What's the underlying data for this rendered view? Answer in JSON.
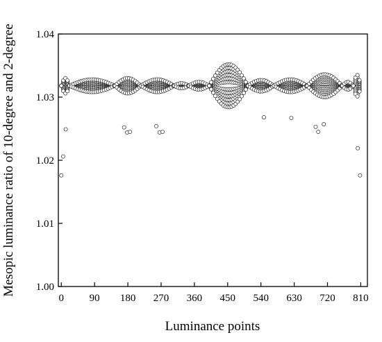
{
  "chart_data": {
    "type": "scatter",
    "title": "",
    "xlabel": "Luminance points",
    "ylabel": "Mesopic luminance ratio of 10-degree and 2-degree",
    "xlim": [
      -8,
      828
    ],
    "ylim": [
      1.0,
      1.04
    ],
    "x_ticks": [
      0,
      90,
      180,
      270,
      360,
      450,
      540,
      630,
      720,
      810
    ],
    "y_ticks": [
      1.0,
      1.01,
      1.02,
      1.03,
      1.04
    ],
    "y_tick_labels": [
      "1.00",
      "1.01",
      "1.02",
      "1.03",
      "1.04"
    ],
    "marker": "open-circle",
    "grid": false,
    "legend": "none",
    "x_range": [
      0,
      810
    ],
    "baseline": 1.0318,
    "lobes": [
      {
        "x_start": 0,
        "x_end": 22,
        "amplitude": 0.0012
      },
      {
        "x_start": 22,
        "x_end": 145,
        "amplitude": 0.001
      },
      {
        "x_start": 145,
        "x_end": 215,
        "amplitude": 0.0012
      },
      {
        "x_start": 215,
        "x_end": 305,
        "amplitude": 0.001
      },
      {
        "x_start": 305,
        "x_end": 345,
        "amplitude": 0.0004
      },
      {
        "x_start": 345,
        "x_end": 400,
        "amplitude": 0.0006
      },
      {
        "x_start": 400,
        "x_end": 505,
        "amplitude": 0.0034
      },
      {
        "x_start": 505,
        "x_end": 575,
        "amplitude": 0.0009
      },
      {
        "x_start": 575,
        "x_end": 665,
        "amplitude": 0.001
      },
      {
        "x_start": 665,
        "x_end": 760,
        "amplitude": 0.0018
      },
      {
        "x_start": 760,
        "x_end": 790,
        "amplitude": 0.0006
      },
      {
        "x_start": 790,
        "x_end": 810,
        "amplitude": 0.0017
      }
    ],
    "lower_extremes": [
      {
        "x": 0,
        "y": 1.0176
      },
      {
        "x": 5,
        "y": 1.0206
      },
      {
        "x": 12,
        "y": 1.0249
      },
      {
        "x": 170,
        "y": 1.0252
      },
      {
        "x": 178,
        "y": 1.0244
      },
      {
        "x": 186,
        "y": 1.0245
      },
      {
        "x": 257,
        "y": 1.0254
      },
      {
        "x": 266,
        "y": 1.0244
      },
      {
        "x": 274,
        "y": 1.0245
      },
      {
        "x": 548,
        "y": 1.0268
      },
      {
        "x": 622,
        "y": 1.0267
      },
      {
        "x": 688,
        "y": 1.0253
      },
      {
        "x": 695,
        "y": 1.0245
      },
      {
        "x": 710,
        "y": 1.0257
      },
      {
        "x": 802,
        "y": 1.0219
      },
      {
        "x": 808,
        "y": 1.0176
      }
    ]
  }
}
